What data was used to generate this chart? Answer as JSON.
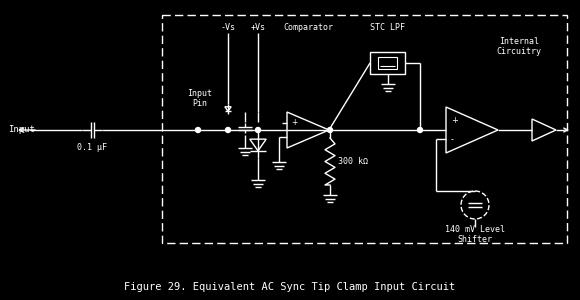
{
  "bg_color": "#000000",
  "fg_color": "#ffffff",
  "title": "Figure 29. Equivalent AC Sync Tip Clamp Input Circuit",
  "title_fontsize": 7.5,
  "fig_width": 5.8,
  "fig_height": 3.0,
  "dpi": 100,
  "labels": {
    "input": "Input",
    "capacitor": "0.1 μF",
    "input_pin": "Input\nPin",
    "neg_vs": "-Vs",
    "pos_vs": "+Vs",
    "comparator": "Comparator",
    "stc_lpf": "STC LPF",
    "internal_circuitry": "Internal\nCircuitry",
    "resistor": "300 kΩ",
    "level_shifter": "140 mV Level\nShifter"
  }
}
